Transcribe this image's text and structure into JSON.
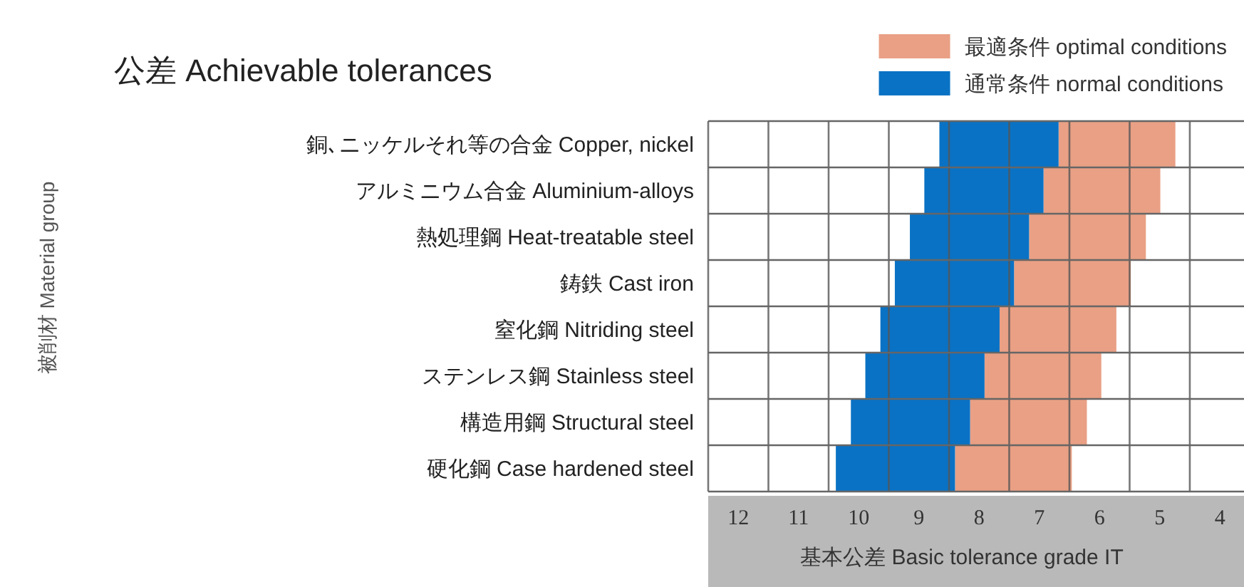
{
  "chart_data": {
    "type": "bar",
    "orientation": "horizontal",
    "title": "公差 Achievable tolerances",
    "xlabel": "基本公差 Basic tolerance grade IT",
    "annotations": [
      "被削材 Material group"
    ],
    "categories": [
      "銅､ニッケルそれ等の合金  Copper, nickel",
      "アルミニウム合金  Aluminium-alloys",
      "熱処理鋼  Heat-treatable steel",
      "鋳鉄  Cast iron",
      "窒化鋼  Nitriding steel",
      "ステンレス鋼  Stainless steel",
      "構造用鋼  Structural steel",
      "硬化鋼  Case hardened steel"
    ],
    "series": [
      {
        "name": "最適条件 optimal conditions",
        "color": "#e9a085",
        "base": [
          4.74,
          4.99,
          5.23,
          5.48,
          5.72,
          5.97,
          6.21,
          6.46
        ],
        "values": [
          1.94,
          1.94,
          1.94,
          1.94,
          1.94,
          1.94,
          1.94,
          1.94
        ]
      },
      {
        "name": "通常条件 normal conditions",
        "color": "#0a72c4",
        "base": [
          6.68,
          6.93,
          7.17,
          7.42,
          7.66,
          7.91,
          8.15,
          8.4
        ],
        "values": [
          1.98,
          1.98,
          1.98,
          1.98,
          1.98,
          1.98,
          1.98,
          1.98
        ]
      }
    ],
    "xlim": [
      12.5,
      3.6
    ],
    "xticks": [
      {
        "value": 12.5,
        "label": null
      },
      12,
      {
        "value": 11.5,
        "label": null
      },
      11,
      {
        "value": 10.5,
        "label": null
      },
      10,
      {
        "value": 9.5,
        "label": null
      },
      9,
      {
        "value": 8.5,
        "label": null
      },
      8,
      {
        "value": 7.5,
        "label": null
      },
      7,
      {
        "value": 6.5,
        "label": null
      },
      6,
      {
        "value": 5.5,
        "label": null
      },
      5,
      {
        "value": 4.5,
        "label": null
      },
      4
    ],
    "grid": true,
    "legend": "top right"
  }
}
